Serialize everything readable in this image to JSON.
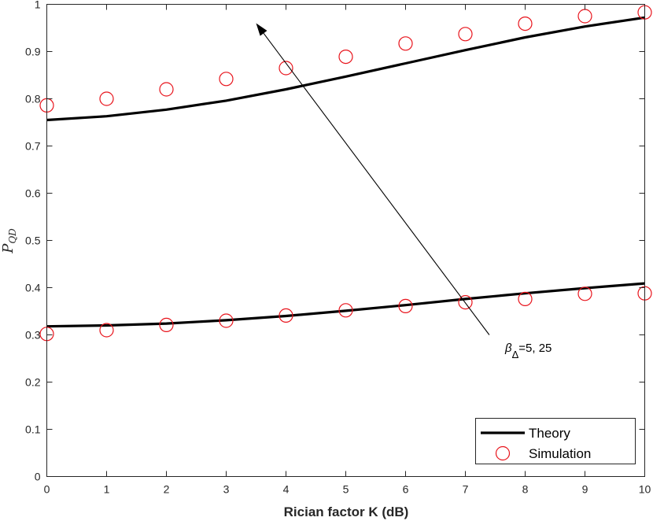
{
  "chart_data": {
    "type": "line",
    "xlabel": "Rician factor K (dB)",
    "ylabel": "P",
    "ylabel_sub": "QD",
    "xlim": [
      0,
      10
    ],
    "ylim": [
      0,
      1
    ],
    "x_ticks": [
      0,
      1,
      2,
      3,
      4,
      5,
      6,
      7,
      8,
      9,
      10
    ],
    "y_ticks": [
      0,
      0.1,
      0.2,
      0.3,
      0.4,
      0.5,
      0.6,
      0.7,
      0.8,
      0.9,
      1
    ],
    "grid": false,
    "legend": {
      "placement": "bottom-right",
      "entries": [
        "Theory",
        "Simulation"
      ]
    },
    "annotation": {
      "symbol": "β",
      "sub": "Δ",
      "text": "=5, 25",
      "arrow_from": [
        7.4,
        0.3
      ],
      "arrow_to": [
        3.5,
        0.96
      ]
    },
    "series": [
      {
        "name": "Theory",
        "style": "line",
        "color": "#000000",
        "curves": [
          {
            "x": [
              0,
              1,
              2,
              3,
              4,
              5,
              6,
              7,
              8,
              9,
              10
            ],
            "y": [
              0.755,
              0.763,
              0.777,
              0.796,
              0.82,
              0.847,
              0.875,
              0.903,
              0.93,
              0.953,
              0.972
            ]
          },
          {
            "x": [
              0,
              1,
              2,
              3,
              4,
              5,
              6,
              7,
              8,
              9,
              10
            ],
            "y": [
              0.318,
              0.32,
              0.324,
              0.331,
              0.34,
              0.351,
              0.363,
              0.376,
              0.388,
              0.399,
              0.409
            ]
          }
        ]
      },
      {
        "name": "Simulation",
        "style": "marker-circle",
        "color": "#e8141c",
        "curves": [
          {
            "x": [
              0,
              1,
              2,
              3,
              4,
              5,
              6,
              7,
              8,
              9,
              10
            ],
            "y": [
              0.786,
              0.8,
              0.82,
              0.842,
              0.865,
              0.889,
              0.917,
              0.937,
              0.959,
              0.975,
              0.983
            ]
          },
          {
            "x": [
              0,
              1,
              2,
              3,
              4,
              5,
              6,
              7,
              8,
              9,
              10
            ],
            "y": [
              0.302,
              0.31,
              0.321,
              0.33,
              0.341,
              0.352,
              0.361,
              0.369,
              0.376,
              0.387,
              0.388
            ]
          }
        ]
      }
    ]
  }
}
